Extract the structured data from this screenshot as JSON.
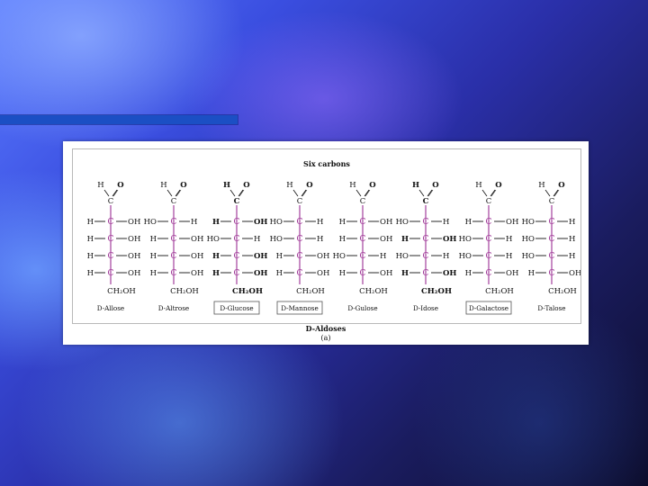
{
  "slide": {
    "figure_title": "Six carbons",
    "footer_title": "D-Aldoses",
    "footer_sub": "(a)"
  },
  "colors": {
    "carbon": "#9b2f93",
    "text": "#111111",
    "box_border": "#555555",
    "title_bar": "#1b4fc4"
  },
  "molecules": [
    {
      "name": "D-Allose",
      "boxed": false,
      "rows": [
        [
          "H",
          "OH"
        ],
        [
          "H",
          "OH"
        ],
        [
          "H",
          "OH"
        ],
        [
          "H",
          "OH"
        ]
      ],
      "bold": false
    },
    {
      "name": "D-Altrose",
      "boxed": false,
      "rows": [
        [
          "HO",
          "H"
        ],
        [
          "H",
          "OH"
        ],
        [
          "H",
          "OH"
        ],
        [
          "H",
          "OH"
        ]
      ],
      "bold": false
    },
    {
      "name": "D-Glucose",
      "boxed": true,
      "rows": [
        [
          "H",
          "OH"
        ],
        [
          "HO",
          "H"
        ],
        [
          "H",
          "OH"
        ],
        [
          "H",
          "OH"
        ]
      ],
      "bold": true
    },
    {
      "name": "D-Mannose",
      "boxed": true,
      "rows": [
        [
          "HO",
          "H"
        ],
        [
          "HO",
          "H"
        ],
        [
          "H",
          "OH"
        ],
        [
          "H",
          "OH"
        ]
      ],
      "bold": false
    },
    {
      "name": "D-Gulose",
      "boxed": false,
      "rows": [
        [
          "H",
          "OH"
        ],
        [
          "H",
          "OH"
        ],
        [
          "HO",
          "H"
        ],
        [
          "H",
          "OH"
        ]
      ],
      "bold": false
    },
    {
      "name": "D-Idose",
      "boxed": false,
      "rows": [
        [
          "HO",
          "H"
        ],
        [
          "H",
          "OH"
        ],
        [
          "HO",
          "H"
        ],
        [
          "H",
          "OH"
        ]
      ],
      "bold": true
    },
    {
      "name": "D-Galactose",
      "boxed": true,
      "rows": [
        [
          "H",
          "OH"
        ],
        [
          "HO",
          "H"
        ],
        [
          "HO",
          "H"
        ],
        [
          "H",
          "OH"
        ]
      ],
      "bold": false
    },
    {
      "name": "D-Talose",
      "boxed": false,
      "rows": [
        [
          "HO",
          "H"
        ],
        [
          "HO",
          "H"
        ],
        [
          "HO",
          "H"
        ],
        [
          "H",
          "OH"
        ]
      ],
      "bold": false
    }
  ],
  "labels": {
    "aldehyde_h": "H",
    "aldehyde_o": "O",
    "carbon": "C",
    "terminal": "CH₂OH"
  }
}
